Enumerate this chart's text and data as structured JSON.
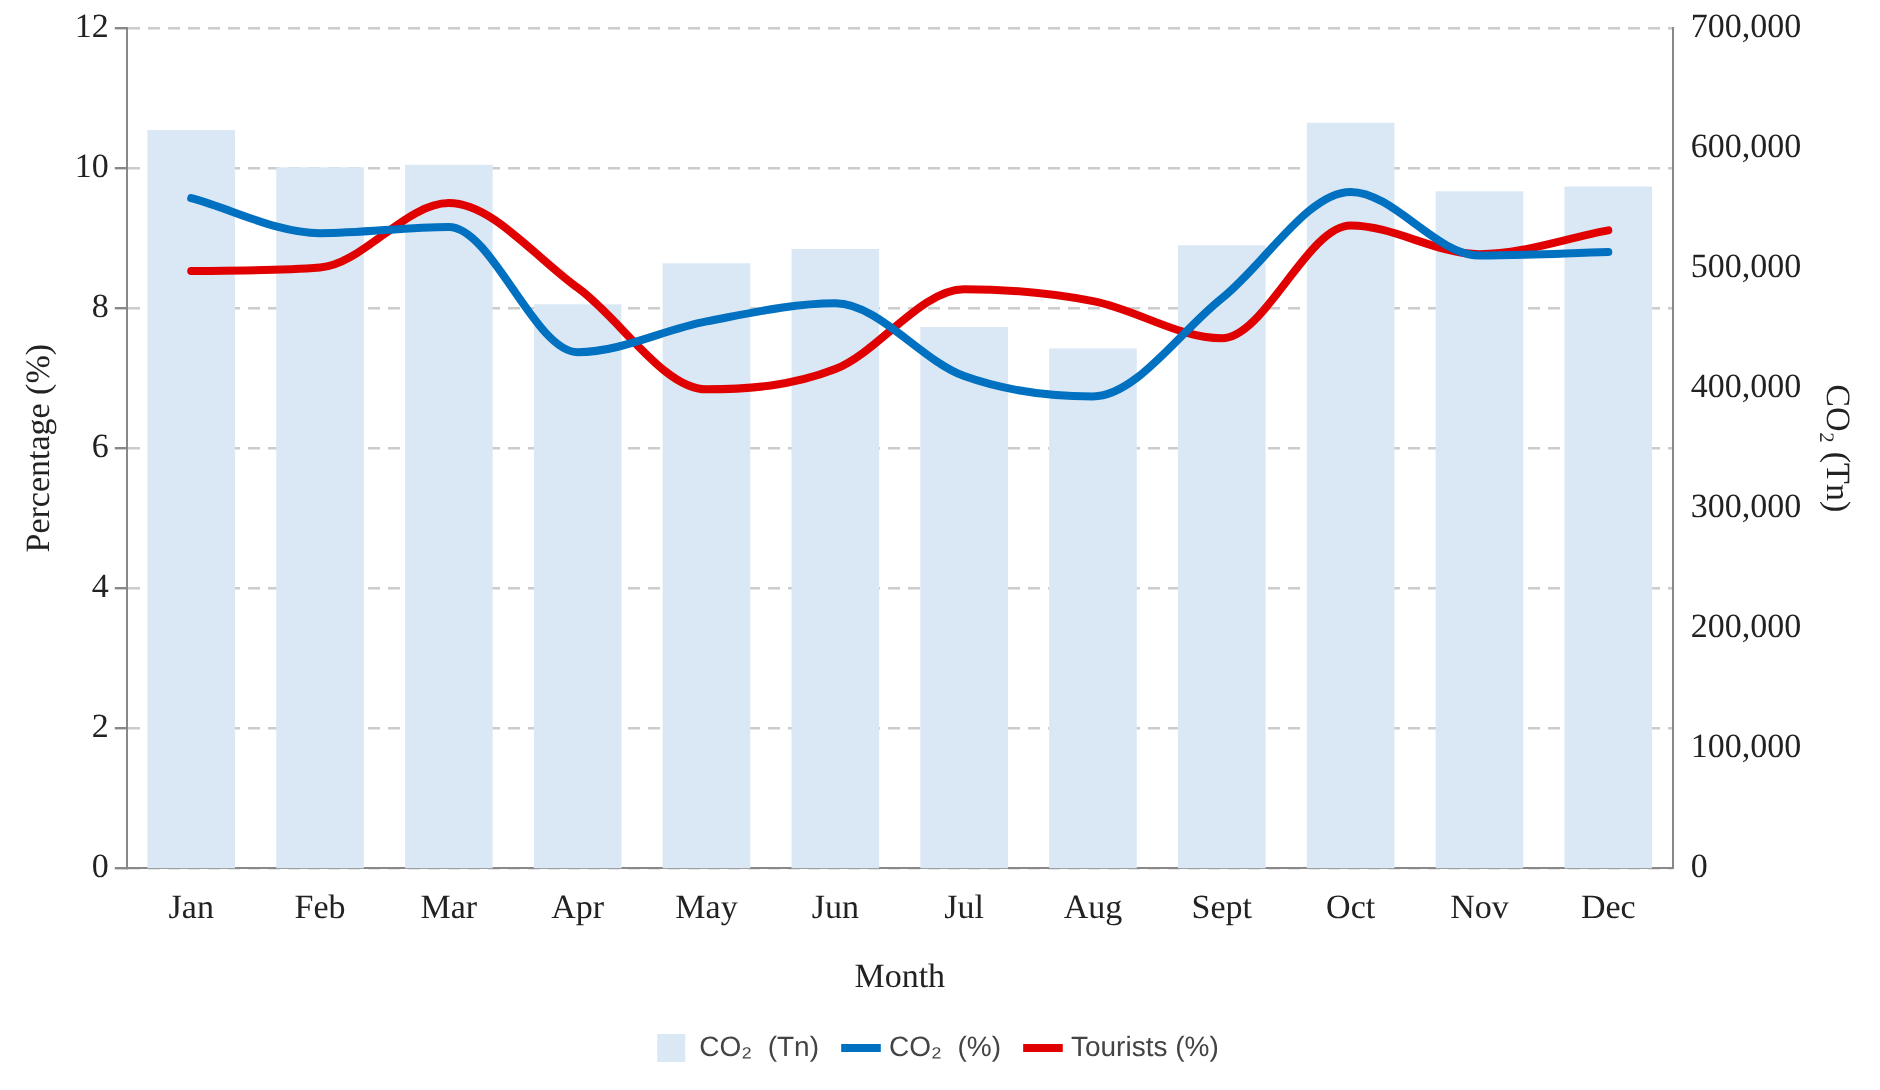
{
  "chart_data": {
    "type": "line",
    "xlabel": "Month",
    "ylabel": "Percentage (%)",
    "y2label": "CO₂ (Tn)",
    "categories": [
      "Jan",
      "Feb",
      "Mar",
      "Apr",
      "May",
      "Jun",
      "Jul",
      "Aug",
      "Sept",
      "Oct",
      "Nov",
      "Dec"
    ],
    "series": [
      {
        "name": "CO₂  (Tn)",
        "type": "bar",
        "axis": "y2",
        "color": "#dae8f5",
        "values": [
          615000,
          584000,
          586000,
          470000,
          504000,
          516000,
          451000,
          433000,
          519000,
          621000,
          564000,
          568000
        ]
      },
      {
        "name": "CO₂  (%)",
        "color": "#0070c0",
        "values": [
          9.57,
          9.07,
          9.16,
          7.37,
          7.81,
          8.07,
          7.03,
          6.74,
          8.14,
          9.66,
          8.75,
          8.8
        ]
      },
      {
        "name": "Tourists (%)",
        "color": "#e00000",
        "values": [
          8.53,
          8.58,
          9.5,
          8.29,
          6.84,
          7.13,
          8.27,
          8.1,
          7.57,
          9.18,
          8.77,
          9.11
        ]
      }
    ],
    "ylim": [
      0,
      12
    ],
    "yticks": [
      0,
      2,
      4,
      6,
      8,
      10,
      12
    ],
    "y2lim": [
      0,
      700000
    ],
    "y2ticks": [
      0,
      {
        "value": 100000,
        "label": "100,000"
      },
      {
        "value": 200000,
        "label": "200,000"
      },
      {
        "value": 300000,
        "label": "300,000"
      },
      {
        "value": 400000,
        "label": "400,000"
      },
      {
        "value": 500000,
        "label": "500,000"
      },
      {
        "value": 600000,
        "label": "600,000"
      },
      {
        "value": 700000,
        "label": "700,000"
      }
    ],
    "grid": "y",
    "legend": "bottom",
    "marker": "none",
    "line_style": "solid"
  }
}
